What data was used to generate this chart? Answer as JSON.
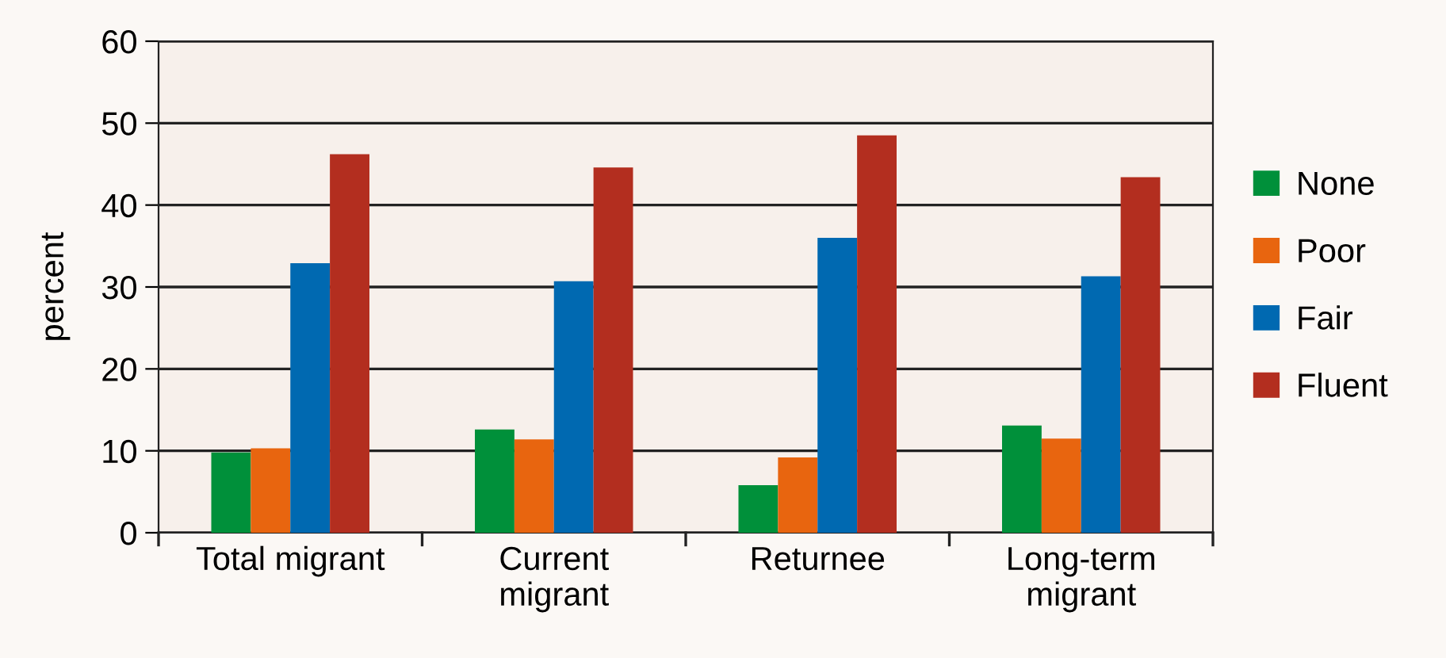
{
  "chart_data": {
    "type": "bar",
    "ylabel": "percent",
    "categories": [
      "Total migrant",
      "Current migrant",
      "Returnee",
      "Long-term migrant"
    ],
    "series": [
      {
        "name": "None",
        "color": "#00903a",
        "values": [
          9.8,
          12.6,
          5.8,
          13.1
        ]
      },
      {
        "name": "Poor",
        "color": "#e8650f",
        "values": [
          10.3,
          11.4,
          9.2,
          11.5
        ]
      },
      {
        "name": "Fair",
        "color": "#0069b1",
        "values": [
          32.9,
          30.7,
          36.0,
          31.3
        ]
      },
      {
        "name": "Fluent",
        "color": "#b32e1f",
        "values": [
          46.2,
          44.6,
          48.5,
          43.4
        ]
      }
    ],
    "ylim": [
      0,
      60
    ],
    "yticks": [
      0,
      10,
      20,
      30,
      40,
      50,
      60
    ],
    "grid": "y",
    "legend": "right"
  }
}
